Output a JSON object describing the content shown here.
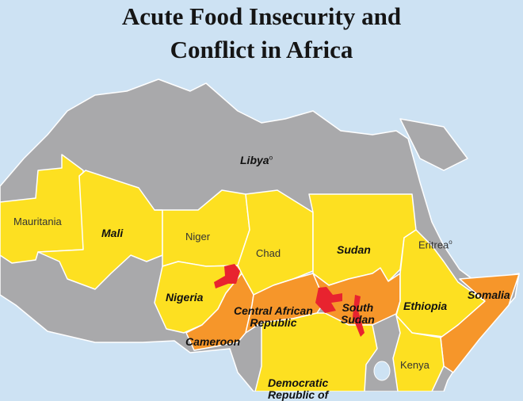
{
  "title": {
    "line1": "Acute Food Insecurity and",
    "line2": "Conflict in Africa"
  },
  "colors": {
    "ocean": "#cde2f3",
    "no_data": "#a9a9ab",
    "food_insecurity": "#fde021",
    "conflict_food_insecurity": "#f6962a",
    "severe": "#e8232f",
    "border": "#ffffff"
  },
  "countries": {
    "libya": {
      "name": "Libya",
      "mark": "o",
      "emphasis": true
    },
    "mauritania": {
      "name": "Mauritania",
      "emphasis": false
    },
    "mali": {
      "name": "Mali",
      "emphasis": true
    },
    "niger": {
      "name": "Niger",
      "emphasis": false
    },
    "chad": {
      "name": "Chad",
      "emphasis": false
    },
    "sudan": {
      "name": "Sudan",
      "emphasis": true
    },
    "eritrea": {
      "name": "Eritrea",
      "mark": "o",
      "emphasis": false
    },
    "nigeria": {
      "name": "Nigeria",
      "emphasis": true
    },
    "car": {
      "name1": "Central African",
      "name2": "Republic",
      "emphasis": true
    },
    "south_sudan": {
      "name1": "South",
      "name2": "Sudan",
      "emphasis": true
    },
    "ethiopia": {
      "name": "Ethiopia",
      "emphasis": true
    },
    "somalia": {
      "name": "Somalia",
      "emphasis": true
    },
    "cameroon": {
      "name": "Cameroon",
      "emphasis": true
    },
    "kenya": {
      "name": "Kenya",
      "emphasis": false
    },
    "drc": {
      "name1": "Democratic",
      "name2": "Republic of",
      "emphasis": true
    }
  }
}
